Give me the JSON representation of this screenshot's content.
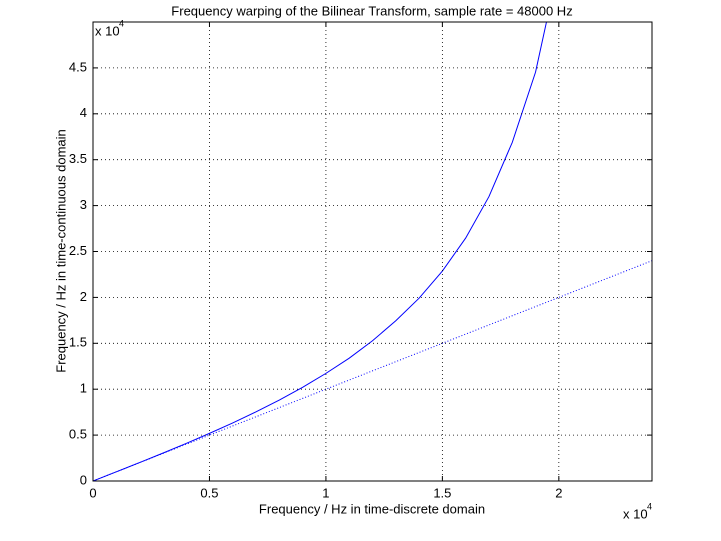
{
  "chart_data": {
    "type": "line",
    "title": "Frequency warping of the Bilinear Transform, sample rate = 48000 Hz",
    "xlabel": "Frequency / Hz in time-discrete domain",
    "ylabel": "Frequency / Hz in time-continuous domain",
    "x_multiplier": "x 10",
    "x_multiplier_exp": "4",
    "y_multiplier": "x 10",
    "y_multiplier_exp": "4",
    "xlim": [
      0,
      24000
    ],
    "ylim": [
      0,
      50000
    ],
    "xticks": [
      0,
      {
        "value": 5000,
        "label": "0.5"
      },
      {
        "value": 10000,
        "label": "1"
      },
      {
        "value": 15000,
        "label": "1.5"
      },
      {
        "value": 20000,
        "label": "2"
      }
    ],
    "yticks": [
      0,
      {
        "value": 5000,
        "label": "0.5"
      },
      {
        "value": 10000,
        "label": "1"
      },
      {
        "value": 15000,
        "label": "1.5"
      },
      {
        "value": 20000,
        "label": "2"
      },
      {
        "value": 25000,
        "label": "2.5"
      },
      {
        "value": 30000,
        "label": "3"
      },
      {
        "value": 35000,
        "label": "3.5"
      },
      {
        "value": 40000,
        "label": "4"
      },
      {
        "value": 45000,
        "label": "4.5"
      }
    ],
    "grid": true,
    "series": [
      {
        "color": "#0000ff",
        "style": "solid",
        "x": [
          0,
          1000,
          2000,
          3000,
          4000,
          5000,
          6000,
          7000,
          8000,
          9000,
          10000,
          11000,
          12000,
          13000,
          14000,
          15000,
          16000,
          17000,
          18000,
          19000,
          19500
        ],
        "values": [
          0,
          1001,
          2011,
          3039,
          4094,
          5187,
          6329,
          7535,
          8821,
          10209,
          11724,
          13376,
          15279,
          17453,
          19912,
          22867,
          26464,
          30983,
          36886,
          44541,
          50360
        ]
      },
      {
        "color": "#0000ff",
        "style": "dotted",
        "x": [
          0,
          24000
        ],
        "values": [
          0,
          24000
        ]
      }
    ]
  }
}
